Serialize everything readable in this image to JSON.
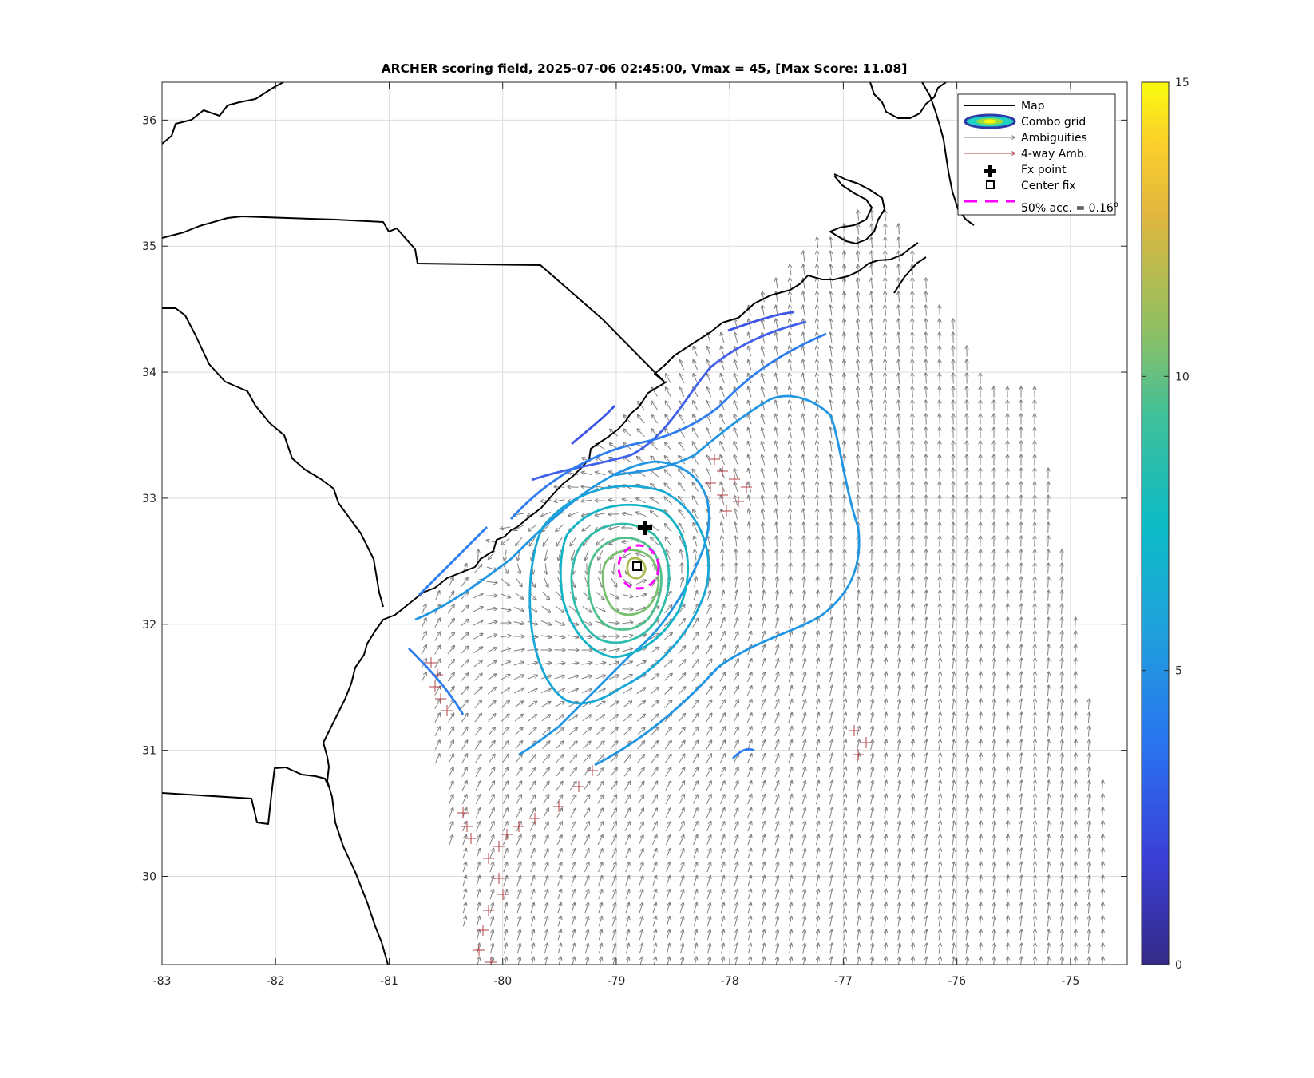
{
  "figure": {
    "title": "ARCHER scoring field, 2025-07-06 02:45:00, Vmax = 45, [Max Score: 11.08]"
  },
  "legend": {
    "items": [
      {
        "label": "Map",
        "symbol": "black-line"
      },
      {
        "label": "Combo grid",
        "symbol": "contour-ellipse"
      },
      {
        "label": "Ambiguities",
        "symbol": "gray-arrow"
      },
      {
        "label": "4-way Amb.",
        "symbol": "red-arrow"
      },
      {
        "label": "Fx point",
        "symbol": "black-plus"
      },
      {
        "label": "Center fix",
        "symbol": "black-square"
      },
      {
        "label": "50% acc. = 0.16",
        "superscript": "o",
        "symbol": "magenta-dashed"
      }
    ]
  },
  "colors": {
    "map_line": "#000000",
    "ambiguity_arrow": "#808080",
    "four_way_arrow": "#b04040",
    "accuracy_circle": "#ff00ff",
    "grid": "#dcdcdc"
  },
  "chart_data": {
    "type": "contour",
    "xlim": [
      -83,
      -74.5
    ],
    "ylim": [
      29.3,
      36.3
    ],
    "x_ticks": [
      "-83",
      "-82",
      "-81",
      "-80",
      "-79",
      "-78",
      "-77",
      "-76",
      "-75"
    ],
    "y_ticks": [
      "30",
      "31",
      "32",
      "33",
      "34",
      "35",
      "36"
    ],
    "grid": true,
    "legend_position": "top-right",
    "colorbar": {
      "range": [
        0,
        15
      ],
      "ticks": [
        "0",
        "5",
        "10",
        "15"
      ],
      "colormap": "parula"
    },
    "max_score": 11.08,
    "fx_point": {
      "lon": -78.77,
      "lat": 32.77
    },
    "center_fix": {
      "lon": -78.82,
      "lat": 32.42
    },
    "accuracy_radius_deg": 0.16,
    "contour_levels": [
      2,
      3,
      4,
      5,
      6,
      7,
      8,
      9,
      10
    ]
  }
}
